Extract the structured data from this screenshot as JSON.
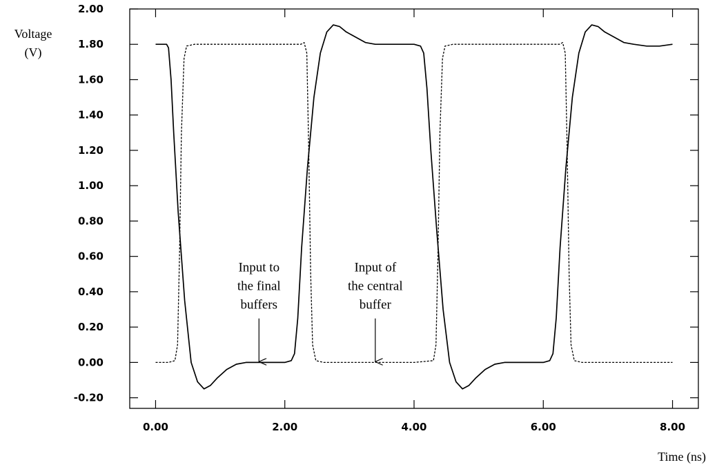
{
  "chart_data": {
    "type": "line",
    "title": "",
    "xlabel": "Time (ns)",
    "ylabel": [
      "Voltage",
      "(V)"
    ],
    "xlim": [
      -0.4,
      8.4
    ],
    "ylim": [
      -0.26,
      2.0
    ],
    "x_ticks": [
      0,
      2,
      4,
      6,
      8
    ],
    "x_tick_labels": [
      "0.00",
      "2.00",
      "4.00",
      "6.00",
      "8.00"
    ],
    "y_ticks": [
      -0.2,
      0,
      0.2,
      0.4,
      0.6,
      0.8,
      1.0,
      1.2,
      1.4,
      1.6,
      1.8,
      2.0
    ],
    "y_tick_labels": [
      "-0.20",
      "0.00",
      "0.20",
      "0.40",
      "0.60",
      "0.80",
      "1.00",
      "1.20",
      "1.40",
      "1.60",
      "1.80",
      "2.00"
    ],
    "grid": false,
    "series": [
      {
        "style": "solid",
        "x": [
          0.0,
          0.17,
          0.2,
          0.24,
          0.28,
          0.35,
          0.45,
          0.55,
          0.65,
          0.75,
          0.85,
          0.95,
          1.1,
          1.25,
          1.4,
          1.6,
          1.8,
          2.0,
          2.1,
          2.15,
          2.2,
          2.26,
          2.35,
          2.45,
          2.55,
          2.65,
          2.75,
          2.85,
          2.95,
          3.1,
          3.25,
          3.4,
          3.6,
          3.8,
          4.0,
          4.1,
          4.15,
          4.2,
          4.26,
          4.35,
          4.45,
          4.55,
          4.65,
          4.75,
          4.85,
          4.95,
          5.1,
          5.25,
          5.4,
          5.6,
          5.8,
          6.0,
          6.1,
          6.15,
          6.2,
          6.26,
          6.35,
          6.45,
          6.55,
          6.65,
          6.75,
          6.85,
          6.95,
          7.1,
          7.25,
          7.4,
          7.6,
          7.8,
          8.0
        ],
        "y": [
          1.8,
          1.8,
          1.78,
          1.6,
          1.3,
          0.85,
          0.35,
          0.0,
          -0.11,
          -0.15,
          -0.13,
          -0.09,
          -0.04,
          -0.01,
          0.0,
          0.0,
          0.0,
          0.0,
          0.01,
          0.05,
          0.25,
          0.65,
          1.1,
          1.5,
          1.75,
          1.87,
          1.91,
          1.9,
          1.87,
          1.84,
          1.81,
          1.8,
          1.8,
          1.8,
          1.8,
          1.79,
          1.75,
          1.55,
          1.2,
          0.75,
          0.3,
          0.0,
          -0.11,
          -0.15,
          -0.13,
          -0.09,
          -0.04,
          -0.01,
          0.0,
          0.0,
          0.0,
          0.0,
          0.01,
          0.05,
          0.25,
          0.65,
          1.1,
          1.5,
          1.75,
          1.87,
          1.91,
          1.9,
          1.87,
          1.84,
          1.81,
          1.8,
          1.79,
          1.79,
          1.8
        ]
      },
      {
        "style": "dashed",
        "x": [
          0.0,
          0.2,
          0.3,
          0.34,
          0.37,
          0.4,
          0.44,
          0.48,
          0.6,
          1.0,
          1.5,
          2.0,
          2.25,
          2.3,
          2.34,
          2.37,
          2.4,
          2.43,
          2.48,
          2.6,
          3.0,
          3.5,
          4.0,
          4.3,
          4.34,
          4.37,
          4.4,
          4.44,
          4.48,
          4.6,
          5.0,
          5.5,
          6.0,
          6.25,
          6.3,
          6.34,
          6.37,
          6.4,
          6.43,
          6.48,
          6.6,
          7.0,
          7.5,
          8.0
        ],
        "y": [
          0.0,
          0.0,
          0.01,
          0.1,
          0.6,
          1.3,
          1.72,
          1.79,
          1.8,
          1.8,
          1.8,
          1.8,
          1.8,
          1.81,
          1.75,
          1.2,
          0.5,
          0.1,
          0.01,
          0.0,
          0.0,
          0.0,
          0.0,
          0.01,
          0.1,
          0.6,
          1.3,
          1.72,
          1.79,
          1.8,
          1.8,
          1.8,
          1.8,
          1.8,
          1.81,
          1.75,
          1.2,
          0.5,
          0.1,
          0.01,
          0.0,
          0.0,
          0.0,
          0.0
        ]
      }
    ],
    "annotations": [
      {
        "lines": [
          "Input to",
          "the final",
          "buffers"
        ],
        "target_x": 1.6,
        "target_y": 0.0,
        "text_top_y": 0.6
      },
      {
        "lines": [
          "Input of",
          "the central",
          "buffer"
        ],
        "target_x": 3.4,
        "target_y": 0.0,
        "text_top_y": 0.6
      }
    ]
  }
}
